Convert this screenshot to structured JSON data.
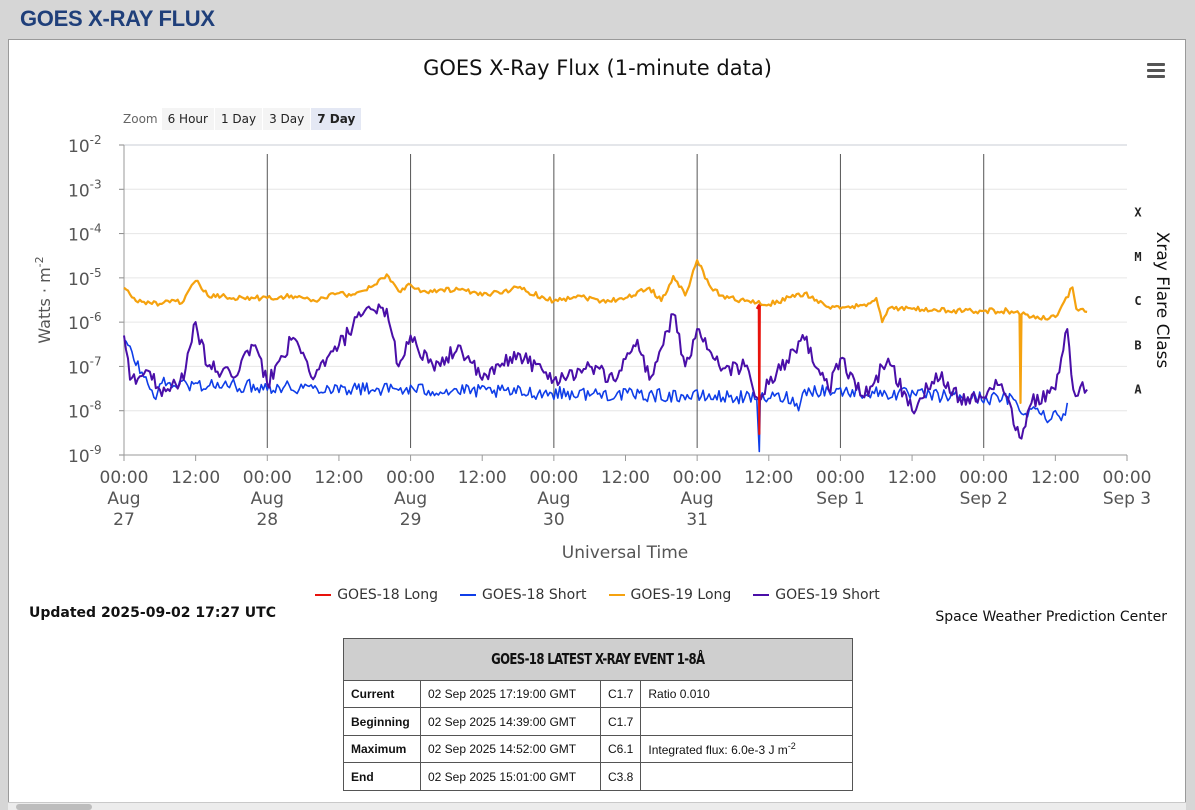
{
  "header": {
    "title": "GOES X-RAY FLUX"
  },
  "menu_icon": "hamburger-menu-icon",
  "zoom": {
    "label": "Zoom",
    "buttons": [
      "6 Hour",
      "1 Day",
      "3 Day",
      "7 Day"
    ],
    "active": "7 Day"
  },
  "updated": "Updated 2025-09-02 17:27 UTC",
  "credit": "Space Weather Prediction Center",
  "colors": {
    "goes18_long": "#e8120c",
    "goes18_short": "#0f3ee8",
    "goes19_long": "#f5a20f",
    "goes19_short": "#4a0fa8",
    "title_blue": "#1f3f7a"
  },
  "event_table": {
    "title": "GOES-18 LATEST X-RAY EVENT 1-8Å",
    "rows": [
      {
        "label": "Current",
        "time": "02 Sep 2025 17:19:00 GMT",
        "class": "C1.7",
        "extra": "Ratio 0.010"
      },
      {
        "label": "Beginning",
        "time": "02 Sep 2025 14:39:00 GMT",
        "class": "C1.7",
        "extra": ""
      },
      {
        "label": "Maximum",
        "time": "02 Sep 2025 14:52:00 GMT",
        "class": "C6.1",
        "extra": "Integrated flux: 6.0e-3 J m",
        "extra_sup": "-2"
      },
      {
        "label": "End",
        "time": "02 Sep 2025 15:01:00 GMT",
        "class": "C3.8",
        "extra": ""
      }
    ]
  },
  "chart_data": {
    "type": "line",
    "title": "GOES X-Ray Flux (1-minute data)",
    "xlabel": "Universal Time",
    "ylabel": "Watts · m",
    "ylabel_sup": "-2",
    "y2label": "Xray Flare Class",
    "y_scale": "log",
    "ylim": [
      1e-09,
      0.01
    ],
    "y_ticks": [
      {
        "base": "10",
        "exp": "-2",
        "value": 0.01
      },
      {
        "base": "10",
        "exp": "-3",
        "value": 0.001
      },
      {
        "base": "10",
        "exp": "-4",
        "value": 0.0001
      },
      {
        "base": "10",
        "exp": "-5",
        "value": 1e-05
      },
      {
        "base": "10",
        "exp": "-6",
        "value": 1e-06
      },
      {
        "base": "10",
        "exp": "-7",
        "value": 1e-07
      },
      {
        "base": "10",
        "exp": "-8",
        "value": 1e-08
      },
      {
        "base": "10",
        "exp": "-9",
        "value": 1e-09
      }
    ],
    "flare_classes": [
      {
        "label": "X",
        "value": 0.0001
      },
      {
        "label": "M",
        "value": 1e-05
      },
      {
        "label": "C",
        "value": 1e-06
      },
      {
        "label": "B",
        "value": 1e-07
      },
      {
        "label": "A",
        "value": 1e-08
      }
    ],
    "xlim": [
      "2025-08-27 00:00",
      "2025-09-03 00:00"
    ],
    "x_ticks": [
      {
        "t": "2025-08-27 00:00",
        "label": [
          "00:00",
          "Aug",
          "27"
        ]
      },
      {
        "t": "2025-08-27 12:00",
        "label": [
          "12:00"
        ]
      },
      {
        "t": "2025-08-28 00:00",
        "label": [
          "00:00",
          "Aug",
          "28"
        ]
      },
      {
        "t": "2025-08-28 12:00",
        "label": [
          "12:00"
        ]
      },
      {
        "t": "2025-08-29 00:00",
        "label": [
          "00:00",
          "Aug",
          "29"
        ]
      },
      {
        "t": "2025-08-29 12:00",
        "label": [
          "12:00"
        ]
      },
      {
        "t": "2025-08-30 00:00",
        "label": [
          "00:00",
          "Aug",
          "30"
        ]
      },
      {
        "t": "2025-08-30 12:00",
        "label": [
          "12:00"
        ]
      },
      {
        "t": "2025-08-31 00:00",
        "label": [
          "00:00",
          "Aug",
          "31"
        ]
      },
      {
        "t": "2025-08-31 12:00",
        "label": [
          "12:00"
        ]
      },
      {
        "t": "2025-09-01 00:00",
        "label": [
          "00:00",
          "Sep 1"
        ]
      },
      {
        "t": "2025-09-01 12:00",
        "label": [
          "12:00"
        ]
      },
      {
        "t": "2025-09-02 00:00",
        "label": [
          "00:00",
          "Sep 2"
        ]
      },
      {
        "t": "2025-09-02 12:00",
        "label": [
          "12:00"
        ]
      },
      {
        "t": "2025-09-03 00:00",
        "label": [
          "00:00",
          "Sep 3"
        ]
      }
    ],
    "day_lines": [
      "2025-08-28 00:00",
      "2025-08-29 00:00",
      "2025-08-30 00:00",
      "2025-08-31 00:00",
      "2025-09-01 00:00",
      "2025-09-02 00:00"
    ],
    "legend_placement": "bottom-center",
    "series": [
      {
        "name": "GOES-18 Long",
        "color": "#e8120c",
        "points": [
          [
            "2025-08-31 10:00",
            2e-06
          ],
          [
            "2025-08-31 10:20",
            2.4e-06
          ],
          [
            "2025-08-31 10:25",
            3e-09
          ],
          [
            "2025-08-31 10:30",
            2.6e-06
          ],
          [
            "2025-08-31 10:45",
            2.3e-06
          ]
        ]
      },
      {
        "name": "GOES-18 Short",
        "color": "#0f3ee8",
        "points": [
          [
            "2025-08-27 00:00",
            4e-07
          ],
          [
            "2025-08-27 04:00",
            4e-08
          ],
          [
            "2025-08-27 05:00",
            2e-08
          ],
          [
            "2025-08-27 06:00",
            4e-08
          ],
          [
            "2025-08-31 08:00",
            2e-08
          ],
          [
            "2025-08-31 10:00",
            1.8e-08
          ],
          [
            "2025-08-31 10:25",
            1.2e-09
          ],
          [
            "2025-08-31 10:35",
            2e-08
          ],
          [
            "2025-08-31 16:00",
            2e-08
          ],
          [
            "2025-08-31 17:00",
            1e-08
          ],
          [
            "2025-08-31 18:00",
            3e-08
          ],
          [
            "2025-09-02 05:00",
            1.8e-08
          ],
          [
            "2025-09-02 06:00",
            1e-08
          ],
          [
            "2025-09-02 10:00",
            1e-08
          ],
          [
            "2025-09-02 11:00",
            6e-09
          ],
          [
            "2025-09-02 12:00",
            1e-08
          ],
          [
            "2025-09-02 13:00",
            6e-09
          ],
          [
            "2025-09-02 14:00",
            1.5e-08
          ]
        ]
      },
      {
        "name": "GOES-19 Long",
        "color": "#f5a20f",
        "points": [
          [
            "2025-08-27 00:00",
            6e-06
          ],
          [
            "2025-08-27 02:00",
            3e-06
          ],
          [
            "2025-08-27 06:00",
            2.6e-06
          ],
          [
            "2025-08-27 10:00",
            3e-06
          ],
          [
            "2025-08-27 12:00",
            8.5e-06
          ],
          [
            "2025-08-27 14:00",
            4e-06
          ],
          [
            "2025-08-27 20:00",
            3.5e-06
          ],
          [
            "2025-08-28 00:00",
            3.5e-06
          ],
          [
            "2025-08-28 04:00",
            4e-06
          ],
          [
            "2025-08-28 08:00",
            3e-06
          ],
          [
            "2025-08-28 12:00",
            4.5e-06
          ],
          [
            "2025-08-28 14:00",
            4e-06
          ],
          [
            "2025-08-28 18:00",
            7e-06
          ],
          [
            "2025-08-28 20:00",
            1.2e-05
          ],
          [
            "2025-08-28 22:00",
            5e-06
          ],
          [
            "2025-08-29 00:00",
            7e-06
          ],
          [
            "2025-08-29 02:00",
            5e-06
          ],
          [
            "2025-08-29 08:00",
            5.5e-06
          ],
          [
            "2025-08-29 12:00",
            4e-06
          ],
          [
            "2025-08-29 18:00",
            6e-06
          ],
          [
            "2025-08-30 00:00",
            3e-06
          ],
          [
            "2025-08-30 04:00",
            4e-06
          ],
          [
            "2025-08-30 08:00",
            3e-06
          ],
          [
            "2025-08-30 12:00",
            3.5e-06
          ],
          [
            "2025-08-30 16:00",
            6e-06
          ],
          [
            "2025-08-30 18:00",
            3e-06
          ],
          [
            "2025-08-30 20:00",
            1.1e-05
          ],
          [
            "2025-08-30 22:00",
            4e-06
          ],
          [
            "2025-08-31 00:00",
            2.5e-05
          ],
          [
            "2025-08-31 02:00",
            7e-06
          ],
          [
            "2025-08-31 04:00",
            4e-06
          ],
          [
            "2025-08-31 08:00",
            3e-06
          ],
          [
            "2025-08-31 12:00",
            2.5e-06
          ],
          [
            "2025-08-31 18:00",
            4.5e-06
          ],
          [
            "2025-08-31 22:00",
            2.2e-06
          ],
          [
            "2025-09-01 00:00",
            2e-06
          ],
          [
            "2025-09-01 04:00",
            2.5e-06
          ],
          [
            "2025-09-01 06:00",
            3.5e-06
          ],
          [
            "2025-09-01 07:00",
            1e-06
          ],
          [
            "2025-09-01 08:00",
            2e-06
          ],
          [
            "2025-09-01 12:00",
            2e-06
          ],
          [
            "2025-09-01 18:00",
            1.8e-06
          ],
          [
            "2025-09-02 00:00",
            1.8e-06
          ],
          [
            "2025-09-02 04:00",
            1.8e-06
          ],
          [
            "2025-09-02 06:00",
            1.5e-06
          ],
          [
            "2025-09-02 06:10",
            1.5e-08
          ],
          [
            "2025-09-02 06:20",
            1.5e-06
          ],
          [
            "2025-09-02 07:00",
            1.5e-06
          ],
          [
            "2025-09-02 08:00",
            1.3e-06
          ],
          [
            "2025-09-02 12:00",
            1.3e-06
          ],
          [
            "2025-09-02 14:52",
            6.1e-06
          ],
          [
            "2025-09-02 15:30",
            2e-06
          ],
          [
            "2025-09-02 17:19",
            1.7e-06
          ]
        ]
      },
      {
        "name": "GOES-19 Short",
        "color": "#4a0fa8",
        "points": [
          [
            "2025-08-27 00:00",
            5e-07
          ],
          [
            "2025-08-27 01:00",
            5e-08
          ],
          [
            "2025-08-27 04:00",
            8e-08
          ],
          [
            "2025-08-27 06:00",
            3e-08
          ],
          [
            "2025-08-27 10:00",
            5e-08
          ],
          [
            "2025-08-27 12:00",
            1e-06
          ],
          [
            "2025-08-27 14:00",
            1e-07
          ],
          [
            "2025-08-27 18:00",
            6e-08
          ],
          [
            "2025-08-27 22:00",
            3e-07
          ],
          [
            "2025-08-28 00:00",
            4e-08
          ],
          [
            "2025-08-28 04:00",
            4e-07
          ],
          [
            "2025-08-28 08:00",
            6e-08
          ],
          [
            "2025-08-28 12:00",
            3e-07
          ],
          [
            "2025-08-28 16:00",
            1.5e-06
          ],
          [
            "2025-08-28 18:00",
            1.8e-06
          ],
          [
            "2025-08-28 20:00",
            2e-06
          ],
          [
            "2025-08-28 22:00",
            1e-07
          ],
          [
            "2025-08-29 00:00",
            5e-07
          ],
          [
            "2025-08-29 04:00",
            8e-08
          ],
          [
            "2025-08-29 08:00",
            3e-07
          ],
          [
            "2025-08-29 12:00",
            5e-08
          ],
          [
            "2025-08-29 18:00",
            2e-07
          ],
          [
            "2025-08-30 00:00",
            5e-08
          ],
          [
            "2025-08-30 06:00",
            1e-07
          ],
          [
            "2025-08-30 10:00",
            5e-08
          ],
          [
            "2025-08-30 14:00",
            4e-07
          ],
          [
            "2025-08-30 16:00",
            5e-08
          ],
          [
            "2025-08-30 20:00",
            1.5e-06
          ],
          [
            "2025-08-30 22:00",
            1e-07
          ],
          [
            "2025-08-31 00:00",
            7e-07
          ],
          [
            "2025-08-31 04:00",
            8e-08
          ],
          [
            "2025-08-31 08:00",
            1e-07
          ],
          [
            "2025-08-31 10:00",
            2e-08
          ],
          [
            "2025-08-31 12:00",
            4e-08
          ],
          [
            "2025-08-31 18:00",
            4e-07
          ],
          [
            "2025-08-31 22:00",
            3e-08
          ],
          [
            "2025-09-01 00:00",
            1.5e-07
          ],
          [
            "2025-09-01 04:00",
            2e-08
          ],
          [
            "2025-09-01 08:00",
            1.5e-07
          ],
          [
            "2025-09-01 12:00",
            1e-08
          ],
          [
            "2025-09-01 16:00",
            7e-08
          ],
          [
            "2025-09-01 20:00",
            2e-08
          ],
          [
            "2025-09-02 00:00",
            2e-08
          ],
          [
            "2025-09-02 02:00",
            5e-08
          ],
          [
            "2025-09-02 04:00",
            2e-08
          ],
          [
            "2025-09-02 06:00",
            2.5e-09
          ],
          [
            "2025-09-02 08:00",
            1.5e-08
          ],
          [
            "2025-09-02 12:00",
            3e-08
          ],
          [
            "2025-09-02 14:00",
            7e-07
          ],
          [
            "2025-09-02 15:00",
            3e-08
          ],
          [
            "2025-09-02 17:19",
            3e-08
          ]
        ]
      }
    ]
  }
}
